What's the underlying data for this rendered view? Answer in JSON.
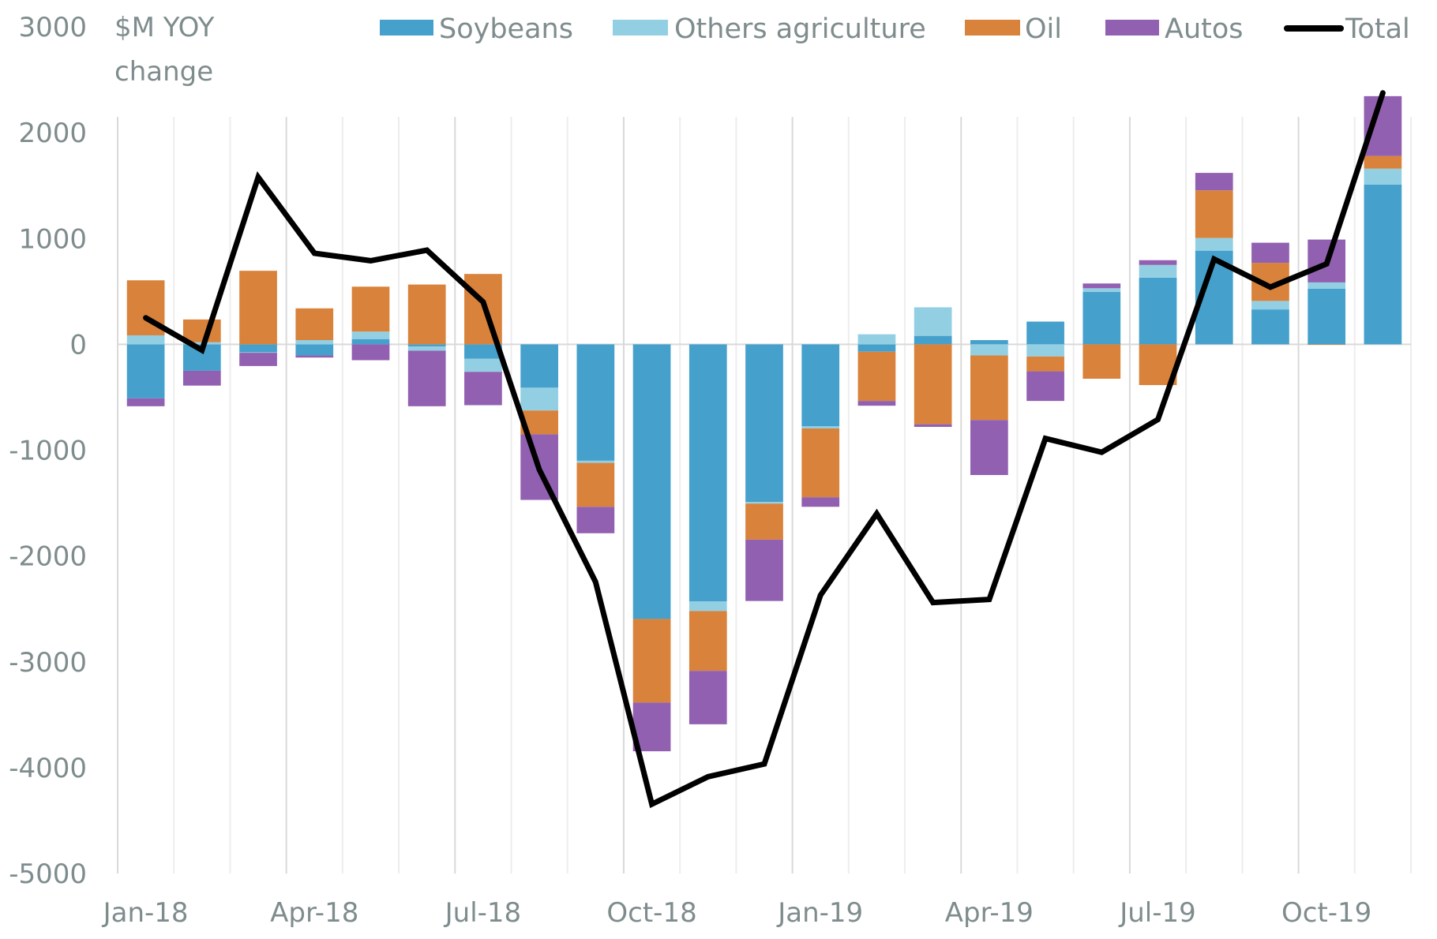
{
  "chart_data": {
    "type": "bar",
    "stacked": true,
    "title": "",
    "ylabel": "$M YOY change",
    "ylabel_lines": [
      "$M YOY",
      "change"
    ],
    "xlabel": "",
    "ylim": [
      -5000,
      3000
    ],
    "yticks": [
      3000,
      2000,
      1000,
      0,
      -1000,
      -2000,
      -3000,
      -4000,
      -5000
    ],
    "grid": "vertical",
    "legend_position": "top",
    "categories": [
      "Jan-18",
      "Feb-18",
      "Mar-18",
      "Apr-18",
      "May-18",
      "Jun-18",
      "Jul-18",
      "Aug-18",
      "Sep-18",
      "Oct-18",
      "Nov-18",
      "Dec-18",
      "Jan-19",
      "Feb-19",
      "Mar-19",
      "Apr-19",
      "May-19",
      "Jun-19",
      "Jul-19",
      "Aug-19",
      "Sep-19",
      "Oct-19",
      "Nov-19"
    ],
    "xtick_labels": [
      "Jan-18",
      "Apr-18",
      "Jul-18",
      "Oct-18",
      "Jan-19",
      "Apr-19",
      "Jul-19",
      "Oct-19"
    ],
    "xtick_indices": [
      0,
      3,
      6,
      9,
      12,
      15,
      18,
      21
    ],
    "series": [
      {
        "name": "Soybeans",
        "kind": "bar",
        "color": "#46a0cc",
        "values": [
          -510,
          -250,
          -75,
          -105,
          50,
          -20,
          -135,
          -410,
          -1100,
          -2595,
          -2430,
          -1490,
          -775,
          -70,
          80,
          40,
          215,
          495,
          630,
          885,
          330,
          525,
          1510
        ]
      },
      {
        "name": "Others agriculture",
        "kind": "bar",
        "color": "#93cfe3",
        "values": [
          85,
          20,
          -5,
          40,
          70,
          -40,
          -125,
          -215,
          -20,
          0,
          -90,
          -15,
          -20,
          95,
          270,
          -105,
          -115,
          35,
          120,
          120,
          80,
          60,
          150
        ]
      },
      {
        "name": "Oil",
        "kind": "bar",
        "color": "#d9823b",
        "values": [
          520,
          215,
          695,
          300,
          425,
          565,
          665,
          -225,
          -415,
          -790,
          -565,
          -340,
          -650,
          -465,
          -755,
          -610,
          -140,
          -325,
          -385,
          450,
          360,
          -5,
          120
        ]
      },
      {
        "name": "Autos",
        "kind": "bar",
        "color": "#9260b0",
        "values": [
          -75,
          -140,
          -125,
          -20,
          -150,
          -525,
          -315,
          -620,
          -250,
          -460,
          -505,
          -580,
          -90,
          -45,
          -25,
          -520,
          -280,
          45,
          45,
          165,
          190,
          405,
          565
        ]
      },
      {
        "name": "Total",
        "kind": "line",
        "color": "#000000",
        "values": [
          250,
          -55,
          1580,
          860,
          790,
          890,
          400,
          -1185,
          -2245,
          -4345,
          -4085,
          -3965,
          -2370,
          -1600,
          -2440,
          -2410,
          -890,
          -1020,
          -710,
          805,
          540,
          760,
          2375
        ]
      }
    ]
  }
}
